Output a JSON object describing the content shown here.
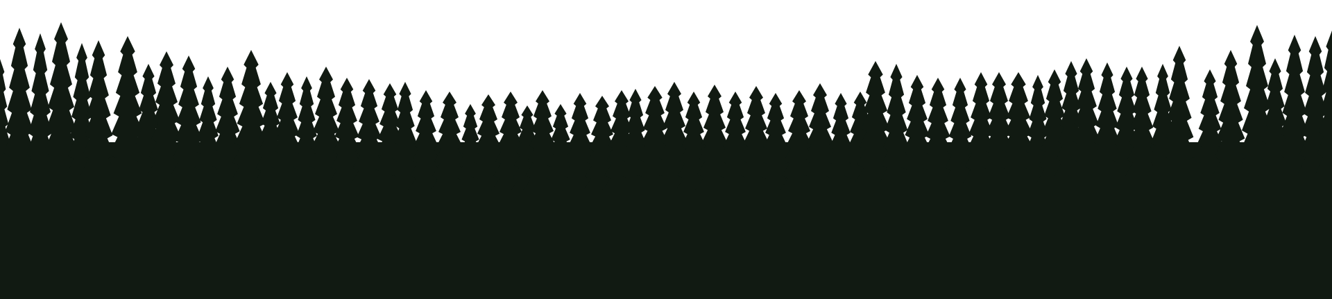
{
  "scene": {
    "subject": "forest-treeline-silhouette",
    "colors": {
      "sky": "#ffffff",
      "forest": "#111a12"
    }
  }
}
